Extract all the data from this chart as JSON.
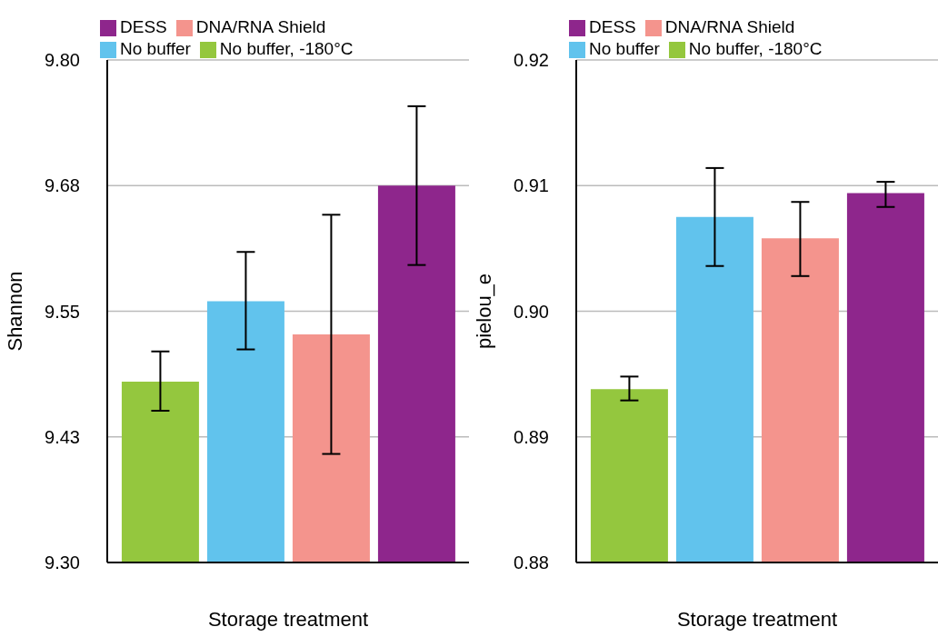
{
  "chart_data": [
    {
      "type": "bar",
      "xlabel": "Storage treatment",
      "ylabel": "Shannon",
      "categories": [
        null
      ],
      "series": [
        {
          "name": "No buffer, -180°C",
          "color": "#94c73e",
          "values": [
            9.48
          ],
          "errors": [
            [
              9.451,
              9.51
            ]
          ]
        },
        {
          "name": "No buffer",
          "color": "#61c3ed",
          "values": [
            9.56
          ],
          "errors": [
            [
              9.512,
              9.609
            ]
          ]
        },
        {
          "name": "DNA/RNA Shield",
          "color": "#f4948d",
          "values": [
            9.527
          ],
          "errors": [
            [
              9.408,
              9.646
            ]
          ]
        },
        {
          "name": "DESS",
          "color": "#8e268c",
          "values": [
            9.675
          ],
          "errors": [
            [
              9.596,
              9.754
            ]
          ]
        }
      ],
      "ylim": [
        9.3,
        9.8
      ],
      "yticks": [
        {
          "value": 9.3,
          "label": "9.30"
        },
        {
          "value": 9.425,
          "label": "9.43"
        },
        {
          "value": 9.55,
          "label": "9.55"
        },
        {
          "value": 9.675,
          "label": "9.68"
        },
        {
          "value": 9.8,
          "label": "9.80"
        }
      ],
      "grid": "y",
      "legend": "top",
      "tick_labels": "y"
    },
    {
      "type": "bar",
      "xlabel": "Storage treatment",
      "ylabel": "pielou_e",
      "categories": [
        null
      ],
      "series": [
        {
          "name": "No buffer, -180°C",
          "color": "#94c73e",
          "values": [
            0.8938
          ],
          "errors": [
            [
              0.8929,
              0.8948
            ]
          ]
        },
        {
          "name": "No buffer",
          "color": "#61c3ed",
          "values": [
            0.9075
          ],
          "errors": [
            [
              0.9036,
              0.9114
            ]
          ]
        },
        {
          "name": "DNA/RNA Shield",
          "color": "#f4948d",
          "values": [
            0.9058
          ],
          "errors": [
            [
              0.9028,
              0.9087
            ]
          ]
        },
        {
          "name": "DESS",
          "color": "#8e268c",
          "values": [
            0.9094
          ],
          "errors": [
            [
              0.9083,
              0.9103
            ]
          ]
        }
      ],
      "ylim": [
        0.88,
        0.92
      ],
      "yticks": [
        {
          "value": 0.88,
          "label": "0.88"
        },
        {
          "value": 0.89,
          "label": "0.89"
        },
        {
          "value": 0.9,
          "label": "0.90"
        },
        {
          "value": 0.91,
          "label": "0.91"
        },
        {
          "value": 0.92,
          "label": "0.92"
        }
      ],
      "grid": "y",
      "legend": "top",
      "tick_labels": "y"
    }
  ]
}
